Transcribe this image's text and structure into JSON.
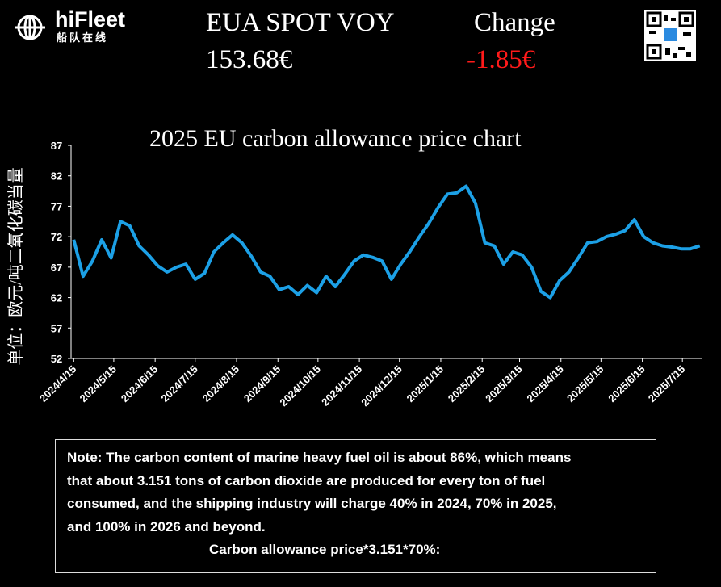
{
  "header": {
    "brand": "hiFleet",
    "brand_sub": "船队在线",
    "label": "EUA SPOT VOY",
    "price": "153.68€",
    "change_label": "Change",
    "change": "-1.85€"
  },
  "chart_data": {
    "type": "line",
    "title": "2025 EU carbon allowance price chart",
    "y_label": "单位：欧元/吨二氧化碳当量",
    "x": [
      "2024/4/15",
      "2024/4/22",
      "2024/4/29",
      "2024/5/6",
      "2024/5/13",
      "2024/5/20",
      "2024/5/27",
      "2024/6/3",
      "2024/6/10",
      "2024/6/17",
      "2024/6/24",
      "2024/7/1",
      "2024/7/8",
      "2024/7/15",
      "2024/7/22",
      "2024/7/29",
      "2024/8/5",
      "2024/8/12",
      "2024/8/19",
      "2024/8/26",
      "2024/9/2",
      "2024/9/9",
      "2024/9/16",
      "2024/9/23",
      "2024/9/30",
      "2024/10/7",
      "2024/10/14",
      "2024/10/21",
      "2024/10/28",
      "2024/11/4",
      "2024/11/11",
      "2024/11/18",
      "2024/11/25",
      "2024/12/2",
      "2024/12/9",
      "2024/12/16",
      "2024/12/23",
      "2024/12/30",
      "2025/1/6",
      "2025/1/13",
      "2025/1/20",
      "2025/1/27",
      "2025/2/3",
      "2025/2/10",
      "2025/2/17",
      "2025/2/24",
      "2025/3/3",
      "2025/3/10",
      "2025/3/17",
      "2025/3/24",
      "2025/3/31",
      "2025/4/7",
      "2025/4/14",
      "2025/4/21",
      "2025/4/28",
      "2025/5/5",
      "2025/5/12",
      "2025/5/19",
      "2025/5/26",
      "2025/6/2",
      "2025/6/9",
      "2025/6/16",
      "2025/6/23",
      "2025/6/30",
      "2025/7/7",
      "2025/7/14",
      "2025/7/21",
      "2025/7/28"
    ],
    "series": [
      {
        "color": "#1ca0e6",
        "values": [
          71.5,
          65.5,
          68,
          71.5,
          68.5,
          74.5,
          73.8,
          70.5,
          69,
          67.2,
          66.2,
          67,
          67.5,
          65,
          66,
          69.5,
          71,
          72.3,
          71,
          68.8,
          66.2,
          65.5,
          63.3,
          63.8,
          62.5,
          64,
          62.8,
          65.5,
          63.8,
          65.8,
          68,
          69,
          68.6,
          68,
          65,
          67.5,
          69.6,
          72,
          74.2,
          76.8,
          79,
          79.2,
          80.3,
          77.5,
          71,
          70.5,
          67.5,
          69.5,
          69,
          67,
          63,
          62,
          64.8,
          66.2,
          68.5,
          71,
          71.2,
          72,
          72.4,
          73,
          74.8,
          72,
          71,
          70.5,
          70.3,
          70,
          70,
          70.5
        ]
      }
    ],
    "xlim": [
      "2024/4/13",
      "2025/7/30"
    ],
    "xticks": [
      "2024/4/15",
      "2024/5/15",
      "2024/6/15",
      "2024/7/15",
      "2024/8/15",
      "2024/9/15",
      "2024/10/15",
      "2024/11/15",
      "2024/12/15",
      "2025/1/15",
      "2025/2/15",
      "2025/3/15",
      "2025/4/15",
      "2025/5/15",
      "2025/6/15",
      "2025/7/15"
    ],
    "ylim": [
      52,
      87
    ],
    "yticks": [
      52,
      57,
      62,
      67,
      72,
      77,
      82,
      87
    ],
    "grid": false
  },
  "note": {
    "lines": [
      "Note: The carbon content of marine heavy fuel oil is about 86%, which means",
      "that about 3.151 tons of carbon dioxide are produced for every ton of fuel",
      "consumed, and the shipping industry will charge 40% in 2024, 70% in 2025,",
      "and 100% in 2026 and beyond."
    ],
    "formula": "Carbon allowance price*3.151*70%:"
  }
}
